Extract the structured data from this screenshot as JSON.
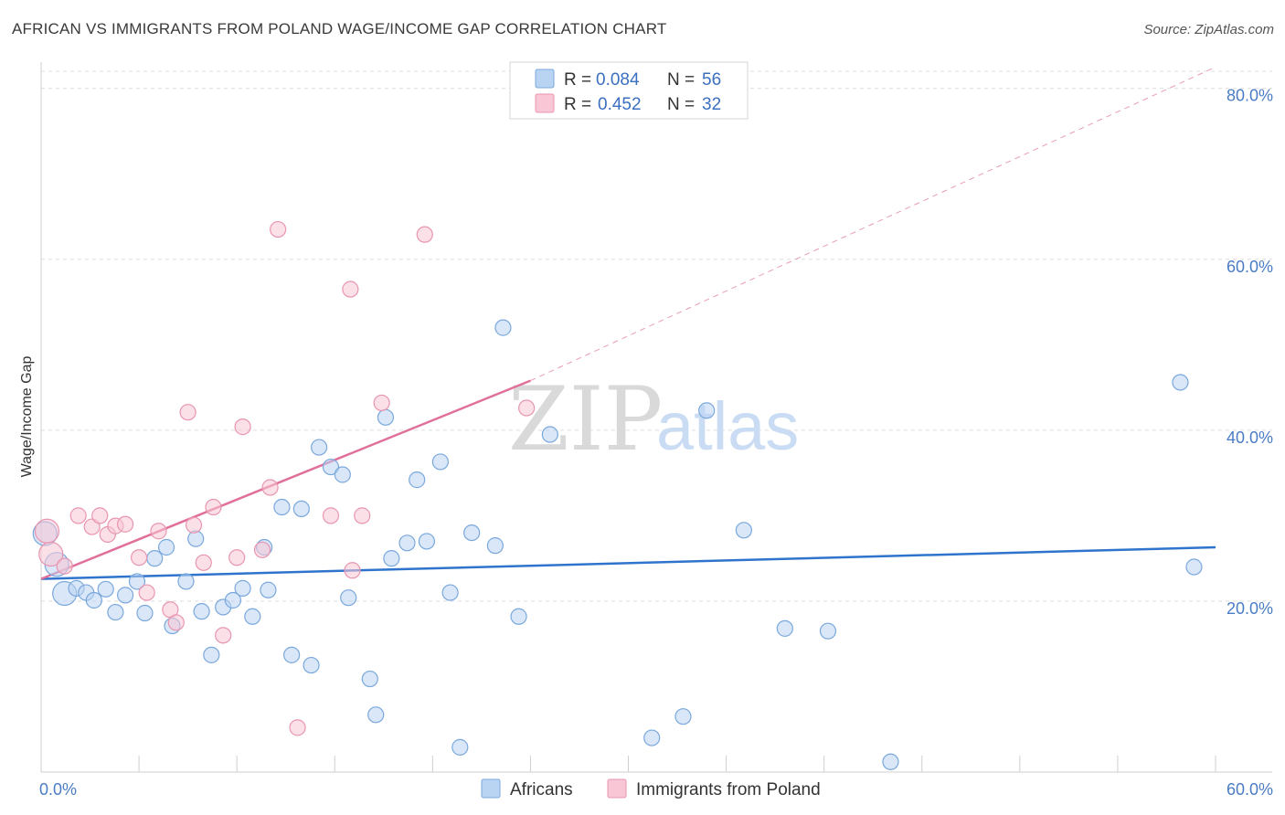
{
  "title": "AFRICAN VS IMMIGRANTS FROM POLAND WAGE/INCOME GAP CORRELATION CHART",
  "source": "Source: ZipAtlas.com",
  "watermark": {
    "zip": "ZIP",
    "atlas": "atlas"
  },
  "colors": {
    "africans_fill": "#b9d3f2",
    "africans_stroke": "#7aa8dc",
    "africans_line": "#2f74cc",
    "poland_fill": "#f9c6d6",
    "poland_stroke": "#e895b0",
    "poland_line": "#e0709a",
    "tick_label": "#4a7cc4",
    "grid": "#dcdcdc"
  },
  "legend": {
    "rows": [
      {
        "r_label": "R = ",
        "r_value": "0.084",
        "n_label": "N = ",
        "n_value": "56"
      },
      {
        "r_label": "R = ",
        "r_value": "0.452",
        "n_label": "N = ",
        "n_value": "32"
      }
    ]
  },
  "bottom_legend": [
    "Africans",
    "Immigrants from Poland"
  ],
  "chart_data": {
    "type": "scatter",
    "title": "AFRICAN VS IMMIGRANTS FROM POLAND WAGE/INCOME GAP CORRELATION CHART",
    "xlabel": "",
    "ylabel": "Wage/Income Gap",
    "xlim": [
      0,
      60
    ],
    "ylim": [
      0,
      82
    ],
    "x_ticks": [
      "0.0%",
      "60.0%"
    ],
    "y_ticks": [
      {
        "value": 20,
        "label": "20.0%"
      },
      {
        "value": 40,
        "label": "40.0%"
      },
      {
        "value": 60,
        "label": "60.0%"
      },
      {
        "value": 80,
        "label": "80.0%"
      }
    ],
    "grid": true,
    "legend_position": "top-center",
    "series": [
      {
        "name": "Africans",
        "R": 0.084,
        "N": 56,
        "trend": {
          "x": [
            0,
            60
          ],
          "y": [
            22.6,
            26.3
          ],
          "dashed_extension": false
        },
        "points": [
          {
            "x": 0.2,
            "y": 27.9,
            "big": true
          },
          {
            "x": 0.8,
            "y": 24.3,
            "big": true
          },
          {
            "x": 1.2,
            "y": 20.9,
            "big": true
          },
          {
            "x": 1.8,
            "y": 21.5
          },
          {
            "x": 2.3,
            "y": 21.0
          },
          {
            "x": 2.7,
            "y": 20.1
          },
          {
            "x": 3.3,
            "y": 21.4
          },
          {
            "x": 3.8,
            "y": 18.7
          },
          {
            "x": 4.3,
            "y": 20.7
          },
          {
            "x": 4.9,
            "y": 22.3
          },
          {
            "x": 5.3,
            "y": 18.6
          },
          {
            "x": 5.8,
            "y": 25.0
          },
          {
            "x": 6.4,
            "y": 26.3
          },
          {
            "x": 6.7,
            "y": 17.1
          },
          {
            "x": 7.4,
            "y": 22.3
          },
          {
            "x": 7.9,
            "y": 27.3
          },
          {
            "x": 8.2,
            "y": 18.8
          },
          {
            "x": 8.7,
            "y": 13.7
          },
          {
            "x": 9.3,
            "y": 19.3
          },
          {
            "x": 9.8,
            "y": 20.1
          },
          {
            "x": 10.3,
            "y": 21.5
          },
          {
            "x": 10.8,
            "y": 18.2
          },
          {
            "x": 11.4,
            "y": 26.3
          },
          {
            "x": 11.6,
            "y": 21.3
          },
          {
            "x": 12.3,
            "y": 31.0
          },
          {
            "x": 12.8,
            "y": 13.7
          },
          {
            "x": 13.3,
            "y": 30.8
          },
          {
            "x": 13.8,
            "y": 12.5
          },
          {
            "x": 14.2,
            "y": 38.0
          },
          {
            "x": 14.8,
            "y": 35.7
          },
          {
            "x": 15.4,
            "y": 34.8
          },
          {
            "x": 15.7,
            "y": 20.4
          },
          {
            "x": 16.8,
            "y": 10.9
          },
          {
            "x": 17.1,
            "y": 6.7
          },
          {
            "x": 17.6,
            "y": 41.5
          },
          {
            "x": 17.9,
            "y": 25.0
          },
          {
            "x": 18.7,
            "y": 26.8
          },
          {
            "x": 19.2,
            "y": 34.2
          },
          {
            "x": 19.7,
            "y": 27.0
          },
          {
            "x": 20.4,
            "y": 36.3
          },
          {
            "x": 20.9,
            "y": 21.0
          },
          {
            "x": 21.4,
            "y": 2.9
          },
          {
            "x": 22.0,
            "y": 28.0
          },
          {
            "x": 23.2,
            "y": 26.5
          },
          {
            "x": 23.6,
            "y": 52.0
          },
          {
            "x": 24.4,
            "y": 18.2
          },
          {
            "x": 26.0,
            "y": 39.5
          },
          {
            "x": 31.2,
            "y": 4.0
          },
          {
            "x": 32.8,
            "y": 6.5
          },
          {
            "x": 34.0,
            "y": 42.3
          },
          {
            "x": 35.9,
            "y": 28.3
          },
          {
            "x": 38.0,
            "y": 16.8
          },
          {
            "x": 40.2,
            "y": 16.5
          },
          {
            "x": 43.4,
            "y": 1.2
          },
          {
            "x": 58.2,
            "y": 45.6
          },
          {
            "x": 58.9,
            "y": 24.0
          }
        ]
      },
      {
        "name": "Immigrants from Poland",
        "R": 0.452,
        "N": 32,
        "trend": {
          "x": [
            0,
            25.0
          ],
          "y": [
            22.6,
            45.8
          ],
          "dashed_extension": {
            "x": [
              25.0,
              60
            ],
            "y": [
              45.8,
              82.5
            ]
          }
        },
        "points": [
          {
            "x": 0.3,
            "y": 28.2,
            "big": true
          },
          {
            "x": 0.5,
            "y": 25.5,
            "big": true
          },
          {
            "x": 1.2,
            "y": 24.1
          },
          {
            "x": 1.9,
            "y": 30.0
          },
          {
            "x": 2.6,
            "y": 28.7
          },
          {
            "x": 3.0,
            "y": 30.0
          },
          {
            "x": 3.4,
            "y": 27.8
          },
          {
            "x": 3.8,
            "y": 28.8
          },
          {
            "x": 4.3,
            "y": 29.0
          },
          {
            "x": 5.0,
            "y": 25.1
          },
          {
            "x": 5.4,
            "y": 21.0
          },
          {
            "x": 6.0,
            "y": 28.2
          },
          {
            "x": 6.6,
            "y": 19.0
          },
          {
            "x": 6.9,
            "y": 17.5
          },
          {
            "x": 7.5,
            "y": 42.1
          },
          {
            "x": 7.8,
            "y": 28.9
          },
          {
            "x": 8.3,
            "y": 24.5
          },
          {
            "x": 8.8,
            "y": 31.0
          },
          {
            "x": 9.3,
            "y": 16.0
          },
          {
            "x": 10.0,
            "y": 25.1
          },
          {
            "x": 10.3,
            "y": 40.4
          },
          {
            "x": 11.3,
            "y": 26.0
          },
          {
            "x": 11.7,
            "y": 33.3
          },
          {
            "x": 12.1,
            "y": 63.5
          },
          {
            "x": 13.1,
            "y": 5.2
          },
          {
            "x": 14.8,
            "y": 30.0
          },
          {
            "x": 15.8,
            "y": 56.5
          },
          {
            "x": 15.9,
            "y": 23.6
          },
          {
            "x": 16.4,
            "y": 30.0
          },
          {
            "x": 17.4,
            "y": 43.2
          },
          {
            "x": 19.6,
            "y": 62.9
          },
          {
            "x": 24.8,
            "y": 42.6
          }
        ]
      }
    ]
  }
}
